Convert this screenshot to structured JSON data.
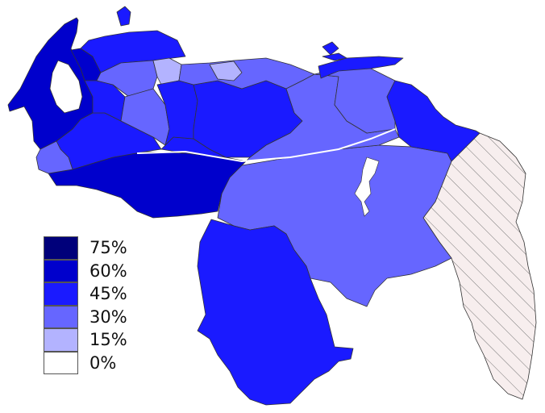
{
  "legend": [
    {
      "label": "75%",
      "color": "#00007a"
    },
    {
      "label": "60%",
      "color": "#0000cc"
    },
    {
      "label": "45%",
      "color": "#1a1aff"
    },
    {
      "label": "30%",
      "color": "#6666ff"
    },
    {
      "label": "15%",
      "color": "#b3b3ff"
    },
    {
      "label": "0%",
      "color": "#ffffff"
    }
  ],
  "hatched_region_color": "#f7eeee",
  "regions": [
    {
      "id": "west-coast",
      "value_class": "60%"
    },
    {
      "id": "southwest-plains",
      "value_class": "60%"
    },
    {
      "id": "andes-1",
      "value_class": "45%"
    },
    {
      "id": "andes-2",
      "value_class": "45%"
    },
    {
      "id": "andes-3",
      "value_class": "30%"
    },
    {
      "id": "south",
      "value_class": "45%"
    },
    {
      "id": "southeast",
      "value_class": "30%"
    },
    {
      "id": "northwest",
      "value_class": "45%"
    },
    {
      "id": "north-central-1",
      "value_class": "30%"
    },
    {
      "id": "north-central-2",
      "value_class": "15%"
    },
    {
      "id": "central",
      "value_class": "45%"
    },
    {
      "id": "central-plains",
      "value_class": "45%"
    },
    {
      "id": "east-1",
      "value_class": "30%"
    },
    {
      "id": "east-2",
      "value_class": "30%"
    },
    {
      "id": "delta",
      "value_class": "45%"
    },
    {
      "id": "island",
      "value_class": "45%"
    },
    {
      "id": "disputed",
      "value_class": "hatched"
    }
  ]
}
